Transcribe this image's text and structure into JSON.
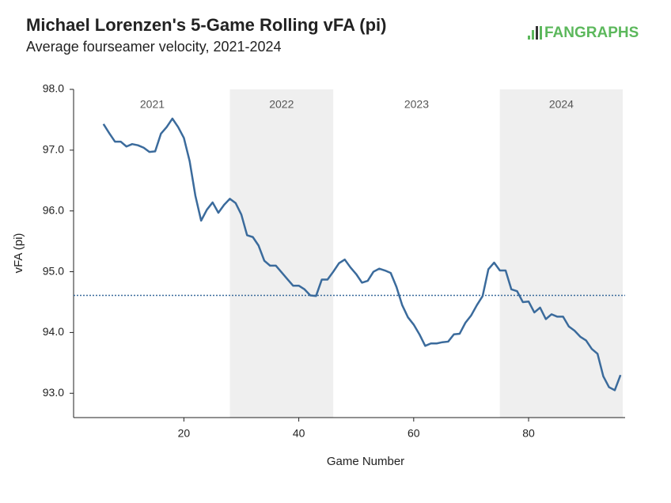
{
  "chart_data": {
    "type": "line",
    "title": "Michael Lorenzen's 5-Game Rolling vFA (pi)",
    "subtitle": "Average fourseamer velocity, 2021-2024",
    "logo": "FANGRAPHS",
    "x_label": "Game Number",
    "y_label": "vFA (pi)",
    "xlim": [
      0.8,
      96.8
    ],
    "ylim": [
      92.6,
      98.0
    ],
    "xticks": [
      20,
      40,
      60,
      80
    ],
    "yticks": [
      {
        "value": 93,
        "label": "93.0"
      },
      {
        "value": 94,
        "label": "94.0"
      },
      {
        "value": 95,
        "label": "95.0"
      },
      {
        "value": 96,
        "label": "96.0"
      },
      {
        "value": 97,
        "label": "97.0"
      },
      {
        "value": 98,
        "label": "98.0"
      }
    ],
    "seasons": [
      {
        "label": "2021",
        "start": 1,
        "end": 28,
        "shaded": false
      },
      {
        "label": "2022",
        "start": 28,
        "end": 46,
        "shaded": true
      },
      {
        "label": "2023",
        "start": 46,
        "end": 75,
        "shaded": false
      },
      {
        "label": "2024",
        "start": 75,
        "end": 96.4,
        "shaded": true
      }
    ],
    "mean_line": 94.61,
    "x": [
      6,
      7,
      8,
      9,
      10,
      11,
      12,
      13,
      14,
      15,
      16,
      17,
      18,
      19,
      20,
      21,
      22,
      23,
      24,
      25,
      26,
      27,
      28,
      29,
      30,
      31,
      32,
      33,
      34,
      35,
      36,
      37,
      38,
      39,
      40,
      41,
      42,
      43,
      44,
      45,
      46,
      47,
      48,
      49,
      50,
      51,
      52,
      53,
      54,
      55,
      56,
      57,
      58,
      59,
      60,
      61,
      62,
      63,
      64,
      65,
      66,
      67,
      68,
      69,
      70,
      71,
      72,
      73,
      74,
      75,
      76,
      77,
      78,
      79,
      80,
      81,
      82,
      83,
      84,
      85,
      86,
      87,
      88,
      89,
      90,
      91,
      92,
      93,
      94,
      95,
      96
    ],
    "series": [
      {
        "name": "vFA",
        "color": "#3b6b9c",
        "values": [
          97.43,
          97.28,
          97.14,
          97.14,
          97.06,
          97.1,
          97.08,
          97.04,
          96.97,
          96.98,
          97.27,
          97.38,
          97.52,
          97.38,
          97.2,
          96.82,
          96.25,
          95.84,
          96.02,
          96.14,
          95.97,
          96.1,
          96.2,
          96.13,
          95.94,
          95.6,
          95.57,
          95.43,
          95.18,
          95.1,
          95.1,
          94.99,
          94.88,
          94.77,
          94.77,
          94.71,
          94.61,
          94.6,
          94.87,
          94.87,
          95.0,
          95.14,
          95.2,
          95.07,
          94.96,
          94.82,
          94.85,
          95.0,
          95.05,
          95.02,
          94.98,
          94.75,
          94.45,
          94.25,
          94.13,
          93.97,
          93.78,
          93.82,
          93.82,
          93.84,
          93.85,
          93.97,
          93.98,
          94.16,
          94.28,
          94.45,
          94.6,
          95.04,
          95.15,
          95.02,
          95.02,
          94.71,
          94.68,
          94.5,
          94.51,
          94.33,
          94.41,
          94.22,
          94.3,
          94.26,
          94.26,
          94.1,
          94.03,
          93.93,
          93.87,
          93.73,
          93.65,
          93.28,
          93.1,
          93.05,
          93.3
        ]
      }
    ]
  }
}
